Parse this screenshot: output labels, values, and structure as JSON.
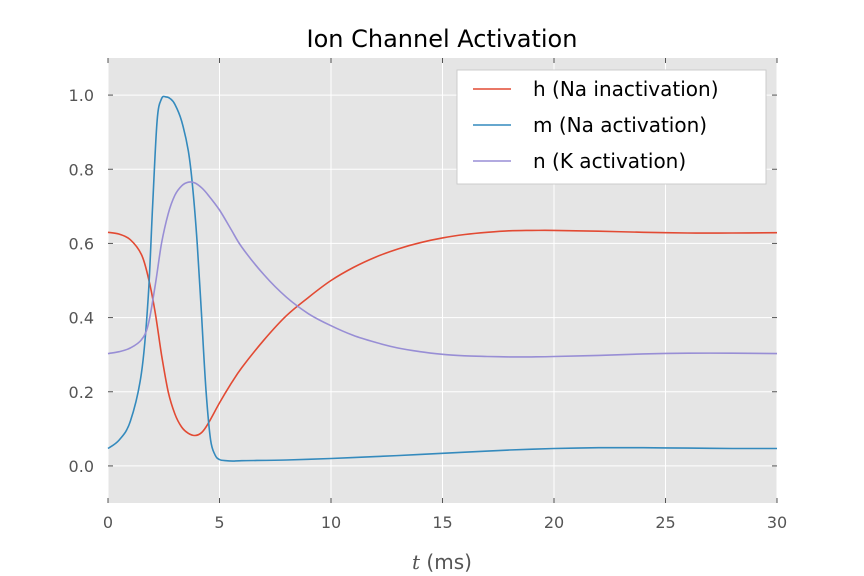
{
  "chart_data": {
    "type": "line",
    "title": "Ion Channel Activation",
    "xlabel_var": "t",
    "xlabel_unit": " (ms)",
    "ylabel": "",
    "xlim": [
      0,
      30
    ],
    "ylim": [
      -0.1,
      1.1
    ],
    "xticks": [
      0,
      5,
      10,
      15,
      20,
      25,
      30
    ],
    "yticks": [
      0.0,
      0.2,
      0.4,
      0.6,
      0.8,
      1.0
    ],
    "xtick_labels": [
      "0",
      "5",
      "10",
      "15",
      "20",
      "25",
      "30"
    ],
    "ytick_labels": [
      "0.0",
      "0.2",
      "0.4",
      "0.6",
      "0.8",
      "1.0"
    ],
    "grid": true,
    "legend_position": "top-right",
    "colors": {
      "background": "#e5e5e5",
      "grid": "#ffffff",
      "h": "#e24a33",
      "m": "#348abd",
      "n": "#988ed5"
    },
    "series": [
      {
        "key": "h",
        "name": "h (Na inactivation)",
        "x": [
          0,
          0.5,
          1.0,
          1.5,
          1.8,
          2.1,
          2.4,
          2.7,
          3.0,
          3.3,
          3.6,
          3.9,
          4.2,
          4.5,
          5.0,
          5.5,
          6,
          7,
          8,
          9,
          10,
          11,
          12,
          13,
          14,
          15,
          16,
          17,
          18,
          19,
          20,
          22,
          24,
          26,
          28,
          30
        ],
        "y": [
          0.63,
          0.625,
          0.61,
          0.57,
          0.51,
          0.42,
          0.3,
          0.2,
          0.14,
          0.105,
          0.088,
          0.082,
          0.09,
          0.115,
          0.17,
          0.22,
          0.265,
          0.34,
          0.405,
          0.455,
          0.5,
          0.535,
          0.563,
          0.585,
          0.602,
          0.615,
          0.624,
          0.63,
          0.634,
          0.635,
          0.635,
          0.633,
          0.63,
          0.628,
          0.628,
          0.629
        ]
      },
      {
        "key": "m",
        "name": "m (Na activation)",
        "x": [
          0,
          0.5,
          1.0,
          1.5,
          1.8,
          2.0,
          2.2,
          2.4,
          2.6,
          2.8,
          3.0,
          3.3,
          3.6,
          3.8,
          4.0,
          4.2,
          4.4,
          4.6,
          4.8,
          5.0,
          5.3,
          5.6,
          6,
          8,
          10,
          12,
          14,
          16,
          18,
          20,
          22,
          24,
          26,
          28,
          30
        ],
        "y": [
          0.047,
          0.07,
          0.12,
          0.25,
          0.45,
          0.7,
          0.93,
          0.99,
          0.995,
          0.99,
          0.975,
          0.93,
          0.85,
          0.75,
          0.6,
          0.4,
          0.2,
          0.07,
          0.03,
          0.017,
          0.014,
          0.013,
          0.014,
          0.016,
          0.02,
          0.025,
          0.031,
          0.037,
          0.043,
          0.047,
          0.049,
          0.049,
          0.048,
          0.047,
          0.047
        ]
      },
      {
        "key": "n",
        "name": "n (K activation)",
        "x": [
          0,
          0.5,
          1.0,
          1.5,
          1.8,
          2.1,
          2.4,
          2.7,
          3.0,
          3.3,
          3.6,
          3.9,
          4.2,
          4.5,
          5.0,
          5.5,
          6,
          7,
          8,
          9,
          10,
          11,
          12,
          13,
          14,
          15,
          16,
          17,
          18,
          19,
          20,
          22,
          24,
          26,
          28,
          30
        ],
        "y": [
          0.303,
          0.308,
          0.318,
          0.34,
          0.38,
          0.48,
          0.6,
          0.68,
          0.73,
          0.755,
          0.765,
          0.763,
          0.75,
          0.73,
          0.69,
          0.64,
          0.59,
          0.515,
          0.455,
          0.41,
          0.378,
          0.352,
          0.333,
          0.318,
          0.308,
          0.301,
          0.297,
          0.295,
          0.294,
          0.294,
          0.295,
          0.298,
          0.302,
          0.304,
          0.304,
          0.303
        ]
      }
    ],
    "legend_order": [
      "h",
      "m",
      "n"
    ]
  }
}
